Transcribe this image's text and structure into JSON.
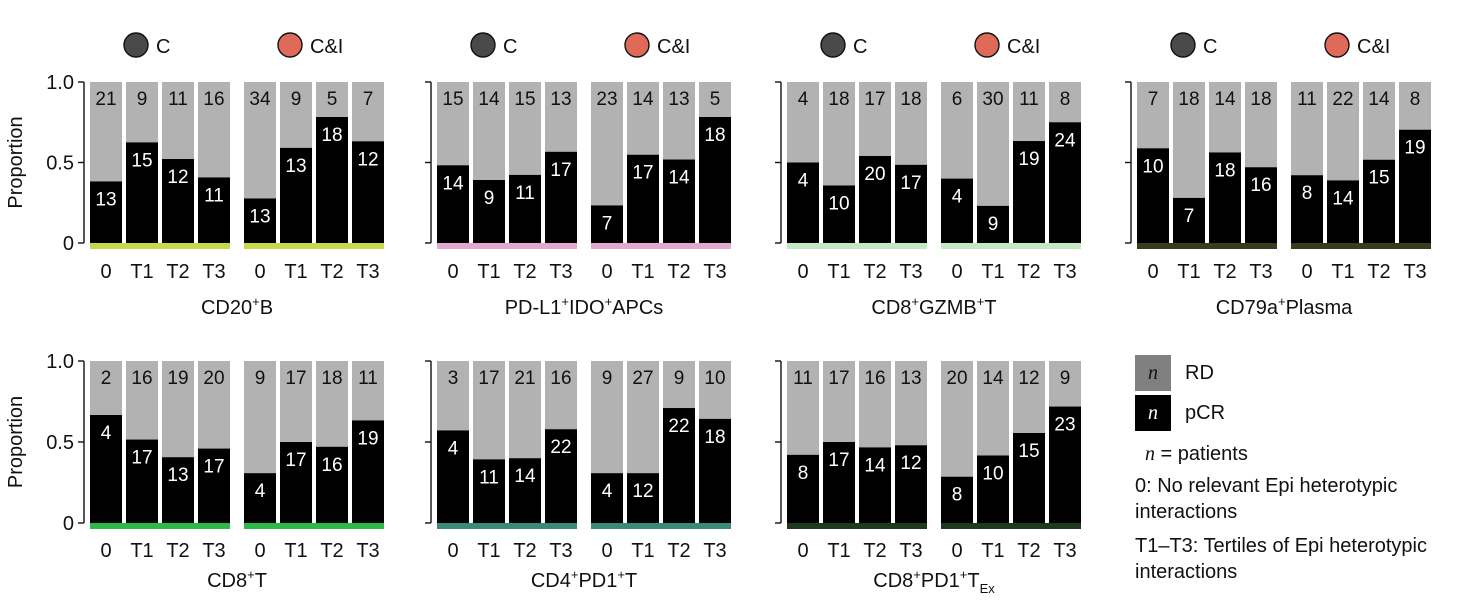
{
  "colors": {
    "pcr": "#000000",
    "rd": "#b2b2b2",
    "group_c": "#4a4a4a",
    "group_ci": "#e06a5a"
  },
  "legend": {
    "rd_box": "n",
    "rd_label": "RD",
    "pcr_box": "n",
    "pcr_label": "pCR",
    "patients_n": "n",
    "patients_rest": " = patients",
    "zero_note": "0: No relevant Epi heterotypic interactions",
    "tertile_note": "T1–T3: Tertiles of Epi heterotypic interactions"
  },
  "chart_data": [
    {
      "type": "bar",
      "stacked": true,
      "panel": "CD20+B",
      "title": "CD20",
      "title_sup": "+",
      "title_rest": "B",
      "title_sub": "",
      "title_tail": "",
      "ylabel": "Proportion",
      "ylim": [
        0,
        1.0
      ],
      "yticks": [
        "0",
        "0.5",
        "1.0"
      ],
      "strip_color": "#c8d84a",
      "groups": [
        {
          "name": "C",
          "categories": [
            "0",
            "T1",
            "T2",
            "T3"
          ],
          "pcr": [
            13,
            15,
            12,
            11
          ],
          "rd": [
            21,
            9,
            11,
            16
          ]
        },
        {
          "name": "C&I",
          "categories": [
            "0",
            "T1",
            "T2",
            "T3"
          ],
          "pcr": [
            13,
            13,
            18,
            12
          ],
          "rd": [
            34,
            9,
            5,
            7
          ]
        }
      ]
    },
    {
      "type": "bar",
      "stacked": true,
      "panel": "PD-L1+IDO+APCs",
      "title": "PD-L1",
      "title_sup": "+",
      "title_rest": "IDO",
      "title_sup2": "+",
      "title_rest2": "APCs",
      "title_sub": "",
      "title_tail": "",
      "ylabel": "",
      "ylim": [
        0,
        1.0
      ],
      "strip_color": "#e4a8d0",
      "groups": [
        {
          "name": "C",
          "categories": [
            "0",
            "T1",
            "T2",
            "T3"
          ],
          "pcr": [
            14,
            9,
            11,
            17
          ],
          "rd": [
            15,
            14,
            15,
            13
          ]
        },
        {
          "name": "C&I",
          "categories": [
            "0",
            "T1",
            "T2",
            "T3"
          ],
          "pcr": [
            7,
            17,
            14,
            18
          ],
          "rd": [
            23,
            14,
            13,
            5
          ]
        }
      ]
    },
    {
      "type": "bar",
      "stacked": true,
      "panel": "CD8+GZMB+T",
      "title": "CD8",
      "title_sup": "+",
      "title_rest": "GZMB",
      "title_sup2": "+",
      "title_rest2": "T",
      "title_sub": "",
      "title_tail": "",
      "ylabel": "",
      "ylim": [
        0,
        1.0
      ],
      "strip_color": "#c4e8c4",
      "groups": [
        {
          "name": "C",
          "categories": [
            "0",
            "T1",
            "T2",
            "T3"
          ],
          "pcr": [
            4,
            10,
            20,
            17
          ],
          "rd": [
            4,
            18,
            17,
            18
          ]
        },
        {
          "name": "C&I",
          "categories": [
            "0",
            "T1",
            "T2",
            "T3"
          ],
          "pcr": [
            4,
            9,
            19,
            24
          ],
          "rd": [
            6,
            30,
            11,
            8
          ]
        }
      ]
    },
    {
      "type": "bar",
      "stacked": true,
      "panel": "CD79a+Plasma",
      "title": "CD79a",
      "title_sup": "+",
      "title_rest": "Plasma",
      "title_sub": "",
      "title_tail": "",
      "ylabel": "",
      "ylim": [
        0,
        1.0
      ],
      "strip_color": "#3a3a1e",
      "groups": [
        {
          "name": "C",
          "categories": [
            "0",
            "T1",
            "T2",
            "T3"
          ],
          "pcr": [
            10,
            7,
            18,
            16
          ],
          "rd": [
            7,
            18,
            14,
            18
          ]
        },
        {
          "name": "C&I",
          "categories": [
            "0",
            "T1",
            "T2",
            "T3"
          ],
          "pcr": [
            8,
            14,
            15,
            19
          ],
          "rd": [
            11,
            22,
            14,
            8
          ]
        }
      ]
    },
    {
      "type": "bar",
      "stacked": true,
      "panel": "CD8+T",
      "title": "CD8",
      "title_sup": "+",
      "title_rest": "T",
      "title_sub": "",
      "title_tail": "",
      "ylabel": "Proportion",
      "ylim": [
        0,
        1.0
      ],
      "yticks": [
        "0",
        "0.5",
        "1.0"
      ],
      "strip_color": "#2fb84a",
      "groups": [
        {
          "name": "C",
          "categories": [
            "0",
            "T1",
            "T2",
            "T3"
          ],
          "pcr": [
            4,
            17,
            13,
            17
          ],
          "rd": [
            2,
            16,
            19,
            20
          ]
        },
        {
          "name": "C&I",
          "categories": [
            "0",
            "T1",
            "T2",
            "T3"
          ],
          "pcr": [
            4,
            17,
            16,
            19
          ],
          "rd": [
            9,
            17,
            18,
            11
          ]
        }
      ]
    },
    {
      "type": "bar",
      "stacked": true,
      "panel": "CD4+PD1+T",
      "title": "CD4",
      "title_sup": "+",
      "title_rest": "PD1",
      "title_sup2": "+",
      "title_rest2": "T",
      "title_sub": "",
      "title_tail": "",
      "ylabel": "",
      "ylim": [
        0,
        1.0
      ],
      "strip_color": "#3a8a7a",
      "groups": [
        {
          "name": "C",
          "categories": [
            "0",
            "T1",
            "T2",
            "T3"
          ],
          "pcr": [
            4,
            11,
            14,
            22
          ],
          "rd": [
            3,
            17,
            21,
            16
          ]
        },
        {
          "name": "C&I",
          "categories": [
            "0",
            "T1",
            "T2",
            "T3"
          ],
          "pcr": [
            4,
            12,
            22,
            18
          ],
          "rd": [
            9,
            27,
            9,
            10
          ]
        }
      ]
    },
    {
      "type": "bar",
      "stacked": true,
      "panel": "CD8+PD1+TEx",
      "title": "CD8",
      "title_sup": "+",
      "title_rest": "PD1",
      "title_sup2": "+",
      "title_rest2": "T",
      "title_sub": "Ex",
      "title_tail": "",
      "ylabel": "",
      "ylim": [
        0,
        1.0
      ],
      "strip_color": "#1e3a1e",
      "groups": [
        {
          "name": "C",
          "categories": [
            "0",
            "T1",
            "T2",
            "T3"
          ],
          "pcr": [
            8,
            17,
            14,
            12
          ],
          "rd": [
            11,
            17,
            16,
            13
          ]
        },
        {
          "name": "C&I",
          "categories": [
            "0",
            "T1",
            "T2",
            "T3"
          ],
          "pcr": [
            8,
            10,
            15,
            23
          ],
          "rd": [
            20,
            14,
            12,
            9
          ]
        }
      ]
    }
  ]
}
